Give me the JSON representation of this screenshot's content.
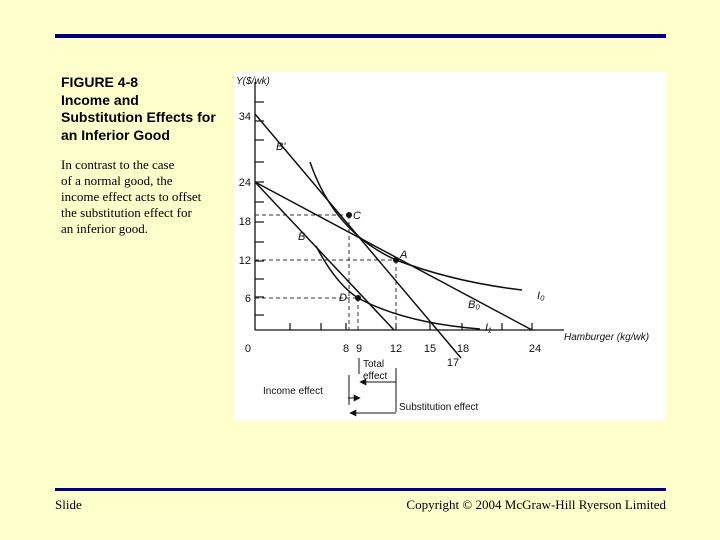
{
  "slide": {
    "title_lines": [
      "FIGURE 4-8",
      "Income and",
      "Substitution Effects for",
      "an Inferior Good"
    ],
    "caption_lines": [
      "In contrast to the case",
      "of a normal good, the",
      "income effect acts to offset",
      "the substitution effect for",
      "an inferior good."
    ],
    "footer_left": "Slide",
    "footer_right": "Copyright © 2004 McGraw-Hill Ryerson Limited",
    "background_color": "#ffffcc",
    "rule_color": "#000080"
  },
  "figure": {
    "y_axis_label": "Y($/wk)",
    "x_axis_label": "Hamburger (kg/wk)",
    "y_ticks": [
      "34",
      "24",
      "18",
      "12",
      "6",
      "0"
    ],
    "x_ticks": [
      "8",
      "9",
      "12",
      "15",
      "18",
      "24",
      "17"
    ],
    "points": {
      "A": "A",
      "B": "B",
      "C": "C",
      "D": "D"
    },
    "curves": {
      "B_prime": "B'",
      "B0": "B₀",
      "I0": "I₀",
      "I1": "I₁"
    },
    "annotations": {
      "total_line1": "Total",
      "total_line2": "effect",
      "income_effect": "Income effect",
      "substitution_effect": "Substitution effect"
    }
  }
}
